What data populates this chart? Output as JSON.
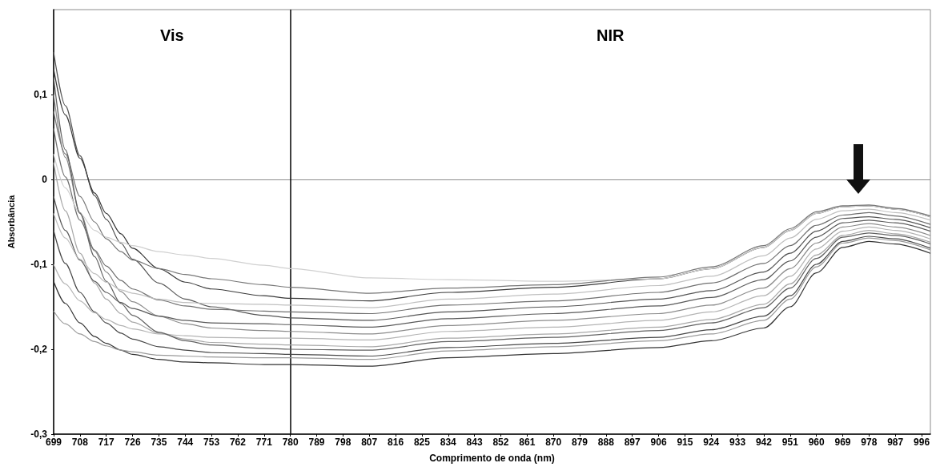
{
  "chart_data": {
    "type": "line",
    "xlabel": "Comprimento de onda (nm)",
    "ylabel": "Absorbância",
    "x": [
      699,
      703,
      708,
      713,
      717,
      722,
      726,
      735,
      744,
      753,
      771,
      780,
      807,
      834,
      870,
      906,
      924,
      942,
      951,
      960,
      969,
      978,
      987,
      999
    ],
    "xlim": [
      699,
      999
    ],
    "xticks": [
      699,
      708,
      717,
      726,
      735,
      744,
      753,
      762,
      771,
      780,
      789,
      798,
      807,
      816,
      825,
      834,
      843,
      852,
      861,
      870,
      879,
      888,
      897,
      906,
      915,
      924,
      933,
      942,
      951,
      960,
      969,
      978,
      987,
      996
    ],
    "ylim": [
      -0.3,
      0.2
    ],
    "yticks": [
      {
        "value": -0.3,
        "label": "-0,3"
      },
      {
        "value": -0.2,
        "label": "-0,2"
      },
      {
        "value": -0.1,
        "label": "-0,1"
      },
      0,
      {
        "value": 0.1,
        "label": "0,1"
      }
    ],
    "grid": false,
    "marker": "none",
    "line_style": "solid",
    "ref_lines": [
      {
        "axis": "y",
        "value": 0,
        "color": "#8c8c8c"
      },
      {
        "axis": "x",
        "value": 780,
        "color": "#000000"
      }
    ],
    "annotations": [
      "Vis",
      "NIR"
    ],
    "series": [
      {
        "color": "#555555",
        "values": [
          0.15,
          0.087,
          0.028,
          -0.019,
          -0.047,
          -0.075,
          -0.094,
          -0.122,
          -0.141,
          -0.15,
          -0.16,
          -0.163,
          -0.166,
          -0.156,
          -0.15,
          -0.141,
          -0.131,
          -0.109,
          -0.087,
          -0.061,
          -0.046,
          -0.044,
          -0.047,
          -0.057
        ]
      },
      {
        "color": "#3a3a3a",
        "values": [
          0.13,
          0.076,
          0.025,
          -0.016,
          -0.04,
          -0.064,
          -0.081,
          -0.105,
          -0.121,
          -0.129,
          -0.137,
          -0.14,
          -0.143,
          -0.133,
          -0.127,
          -0.117,
          -0.105,
          -0.08,
          -0.06,
          -0.04,
          -0.032,
          -0.031,
          -0.035,
          -0.044
        ]
      },
      {
        "color": "#8c8c8c",
        "values": [
          0.1,
          0.026,
          -0.039,
          -0.084,
          -0.109,
          -0.132,
          -0.144,
          -0.161,
          -0.17,
          -0.175,
          -0.178,
          -0.179,
          -0.182,
          -0.172,
          -0.166,
          -0.158,
          -0.148,
          -0.128,
          -0.105,
          -0.075,
          -0.056,
          -0.052,
          -0.056,
          -0.066
        ]
      },
      {
        "color": "#707070",
        "values": [
          0.06,
          0.003,
          -0.048,
          -0.083,
          -0.102,
          -0.119,
          -0.129,
          -0.142,
          -0.149,
          -0.153,
          -0.155,
          -0.156,
          -0.158,
          -0.148,
          -0.143,
          -0.133,
          -0.122,
          -0.099,
          -0.078,
          -0.054,
          -0.042,
          -0.039,
          -0.043,
          -0.053
        ]
      },
      {
        "color": "#a8a8a8",
        "values": [
          0.02,
          -0.037,
          -0.087,
          -0.122,
          -0.141,
          -0.158,
          -0.168,
          -0.181,
          -0.188,
          -0.192,
          -0.194,
          -0.195,
          -0.197,
          -0.187,
          -0.182,
          -0.174,
          -0.165,
          -0.147,
          -0.123,
          -0.089,
          -0.066,
          -0.06,
          -0.064,
          -0.074
        ]
      },
      {
        "color": "#5a5a5a",
        "values": [
          -0.02,
          -0.06,
          -0.095,
          -0.12,
          -0.133,
          -0.145,
          -0.152,
          -0.161,
          -0.166,
          -0.169,
          -0.17,
          -0.171,
          -0.174,
          -0.164,
          -0.158,
          -0.149,
          -0.139,
          -0.118,
          -0.096,
          -0.068,
          -0.051,
          -0.048,
          -0.051,
          -0.061
        ]
      },
      {
        "color": "#484848",
        "values": [
          -0.06,
          -0.099,
          -0.133,
          -0.156,
          -0.169,
          -0.181,
          -0.188,
          -0.197,
          -0.201,
          -0.204,
          -0.205,
          -0.206,
          -0.208,
          -0.198,
          -0.193,
          -0.186,
          -0.177,
          -0.161,
          -0.137,
          -0.1,
          -0.073,
          -0.067,
          -0.07,
          -0.081
        ]
      },
      {
        "color": "#b4b4b4",
        "values": [
          -0.1,
          -0.123,
          -0.143,
          -0.157,
          -0.165,
          -0.172,
          -0.176,
          -0.182,
          -0.184,
          -0.186,
          -0.187,
          -0.187,
          -0.189,
          -0.179,
          -0.174,
          -0.166,
          -0.156,
          -0.137,
          -0.114,
          -0.082,
          -0.061,
          -0.056,
          -0.06,
          -0.07
        ]
      },
      {
        "color": "#333333",
        "values": [
          -0.12,
          -0.146,
          -0.169,
          -0.185,
          -0.193,
          -0.201,
          -0.206,
          -0.212,
          -0.215,
          -0.216,
          -0.218,
          -0.218,
          -0.22,
          -0.21,
          -0.205,
          -0.198,
          -0.19,
          -0.175,
          -0.15,
          -0.11,
          -0.08,
          -0.073,
          -0.076,
          -0.087
        ]
      },
      {
        "color": "#9a9a9a",
        "values": [
          -0.155,
          -0.17,
          -0.182,
          -0.191,
          -0.196,
          -0.201,
          -0.203,
          -0.207,
          -0.208,
          -0.209,
          -0.21,
          -0.21,
          -0.212,
          -0.202,
          -0.197,
          -0.19,
          -0.182,
          -0.166,
          -0.141,
          -0.103,
          -0.075,
          -0.069,
          -0.072,
          -0.083
        ]
      },
      {
        "color": "#d0d0d0",
        "values": [
          0.03,
          -0.01,
          -0.04,
          -0.06,
          -0.068,
          -0.074,
          -0.078,
          -0.085,
          -0.089,
          -0.093,
          -0.101,
          -0.105,
          -0.116,
          -0.118,
          -0.12,
          -0.117,
          -0.105,
          -0.08,
          -0.06,
          -0.04,
          -0.032,
          -0.031,
          -0.035,
          -0.044
        ]
      },
      {
        "color": "#777777",
        "values": [
          0.08,
          0.03,
          -0.02,
          -0.05,
          -0.07,
          -0.085,
          -0.095,
          -0.105,
          -0.112,
          -0.117,
          -0.124,
          -0.127,
          -0.134,
          -0.128,
          -0.124,
          -0.115,
          -0.103,
          -0.078,
          -0.058,
          -0.038,
          -0.031,
          -0.03,
          -0.034,
          -0.043
        ]
      },
      {
        "color": "#626262",
        "values": [
          0.12,
          0.035,
          -0.04,
          -0.091,
          -0.12,
          -0.146,
          -0.16,
          -0.18,
          -0.19,
          -0.195,
          -0.199,
          -0.2,
          -0.201,
          -0.191,
          -0.186,
          -0.178,
          -0.169,
          -0.151,
          -0.128,
          -0.093,
          -0.068,
          -0.063,
          -0.066,
          -0.076
        ]
      },
      {
        "color": "#c0c0c0",
        "values": [
          -0.04,
          -0.069,
          -0.094,
          -0.111,
          -0.121,
          -0.13,
          -0.134,
          -0.141,
          -0.145,
          -0.146,
          -0.147,
          -0.148,
          -0.151,
          -0.141,
          -0.135,
          -0.125,
          -0.114,
          -0.09,
          -0.069,
          -0.047,
          -0.037,
          -0.035,
          -0.039,
          -0.048
        ]
      }
    ]
  }
}
